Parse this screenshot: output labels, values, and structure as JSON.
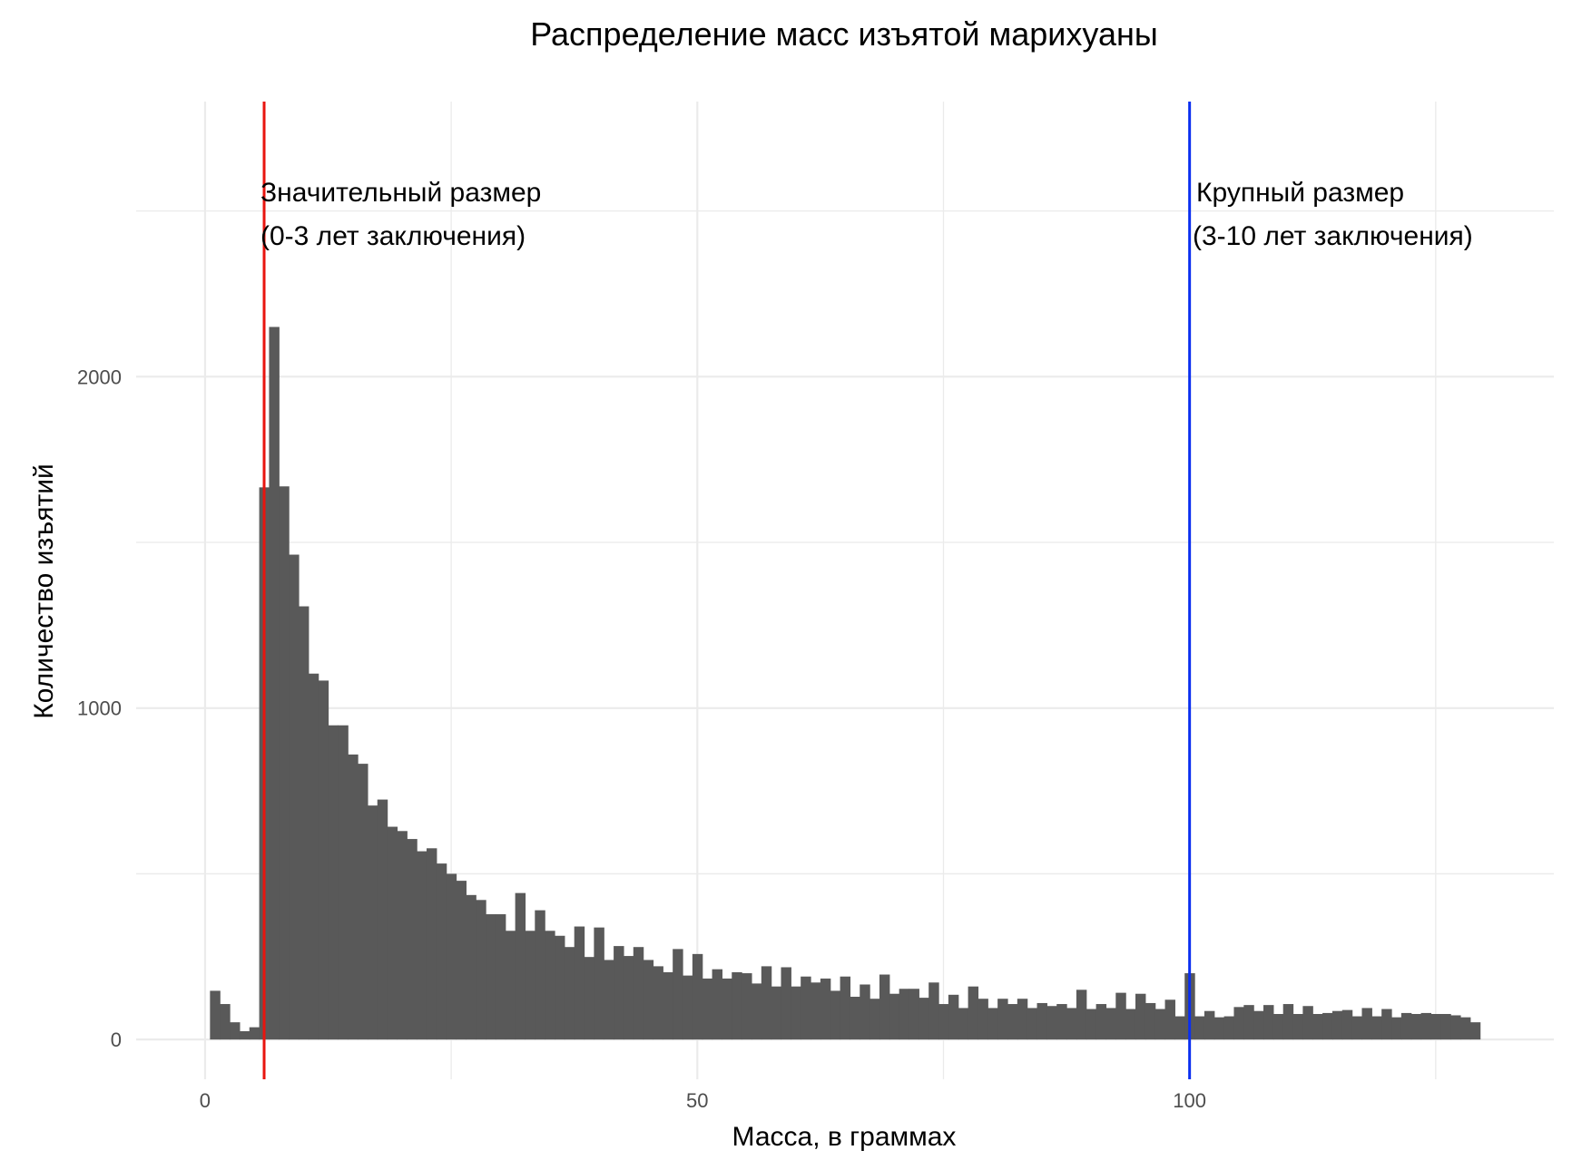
{
  "chart_data": {
    "type": "bar",
    "subtype": "histogram",
    "title": "Распределение масс изъятой марихуаны",
    "xlabel": "Масса, в граммах",
    "ylabel": "Количество изъятий",
    "xlim": [
      -7,
      137
    ],
    "ylim": [
      -120,
      2830
    ],
    "x_ticks": [
      0,
      50,
      100
    ],
    "x_tick_labels": [
      "0",
      "50",
      "100"
    ],
    "y_ticks": [
      0,
      1000,
      2000
    ],
    "y_tick_labels": [
      "0",
      "1000",
      "2000"
    ],
    "grid": true,
    "bin_width": 1,
    "bin_centers_start": 1,
    "values": [
      147,
      107,
      52,
      25,
      37,
      1666,
      2150,
      1669,
      1463,
      1307,
      1104,
      1083,
      948,
      948,
      860,
      832,
      706,
      724,
      642,
      629,
      605,
      568,
      577,
      531,
      500,
      479,
      436,
      421,
      378,
      378,
      328,
      442,
      328,
      390,
      328,
      313,
      279,
      341,
      249,
      338,
      240,
      282,
      252,
      279,
      240,
      221,
      203,
      273,
      193,
      258,
      184,
      212,
      184,
      203,
      200,
      169,
      221,
      160,
      218,
      160,
      190,
      172,
      184,
      147,
      190,
      129,
      166,
      123,
      196,
      138,
      153,
      153,
      126,
      172,
      107,
      135,
      95,
      160,
      123,
      95,
      123,
      107,
      123,
      95,
      110,
      101,
      107,
      95,
      150,
      92,
      107,
      95,
      141,
      92,
      138,
      110,
      92,
      120,
      70,
      200,
      70,
      86,
      67,
      70,
      98,
      104,
      86,
      104,
      77,
      107,
      77,
      101,
      77,
      80,
      86,
      89,
      70,
      95,
      70,
      92,
      67,
      80,
      77,
      80,
      77,
      77,
      73,
      67,
      52
    ],
    "bar_color": "#595959",
    "vlines": [
      {
        "x": 6,
        "color": "#e8150f",
        "label_line1": "Значительный размер",
        "label_line2": "(0-3 лет заключения)"
      },
      {
        "x": 100,
        "color": "#0a2ff0",
        "label_line1": "Крупный размер",
        "label_line2": "(3-10 лет заключения)"
      }
    ]
  }
}
